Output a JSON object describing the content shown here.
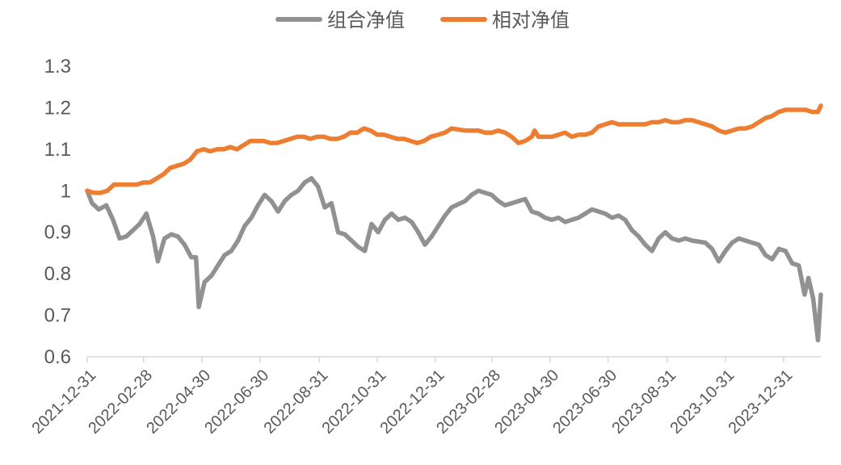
{
  "chart_data": {
    "type": "line",
    "title": "",
    "xlabel": "",
    "ylabel": "",
    "ylim": [
      0.6,
      1.3
    ],
    "yticks": [
      "0.6",
      "0.7",
      "0.8",
      "0.9",
      "1",
      "1.1",
      "1.2",
      "1.3"
    ],
    "xticks": [
      "2021-12-31",
      "2022-02-28",
      "2022-04-30",
      "2022-06-30",
      "2022-08-31",
      "2022-10-31",
      "2022-12-31",
      "2023-02-28",
      "2023-04-30",
      "2023-06-30",
      "2023-08-31",
      "2023-10-31",
      "2023-12-31"
    ],
    "x_end": "2024-02-08",
    "grid": false,
    "legend_position": "top-center",
    "series": [
      {
        "name": "组合净值",
        "color": "#919191",
        "points": [
          [
            "2021-12-31",
            1.0
          ],
          [
            "2022-01-05",
            0.97
          ],
          [
            "2022-01-12",
            0.955
          ],
          [
            "2022-01-20",
            0.965
          ],
          [
            "2022-01-27",
            0.93
          ],
          [
            "2022-02-03",
            0.885
          ],
          [
            "2022-02-10",
            0.89
          ],
          [
            "2022-02-17",
            0.905
          ],
          [
            "2022-02-24",
            0.92
          ],
          [
            "2022-03-03",
            0.945
          ],
          [
            "2022-03-10",
            0.89
          ],
          [
            "2022-03-15",
            0.83
          ],
          [
            "2022-03-22",
            0.885
          ],
          [
            "2022-03-29",
            0.895
          ],
          [
            "2022-04-05",
            0.89
          ],
          [
            "2022-04-12",
            0.87
          ],
          [
            "2022-04-19",
            0.84
          ],
          [
            "2022-04-24",
            0.84
          ],
          [
            "2022-04-27",
            0.72
          ],
          [
            "2022-05-03",
            0.78
          ],
          [
            "2022-05-10",
            0.795
          ],
          [
            "2022-05-17",
            0.82
          ],
          [
            "2022-05-24",
            0.845
          ],
          [
            "2022-05-31",
            0.855
          ],
          [
            "2022-06-07",
            0.88
          ],
          [
            "2022-06-14",
            0.915
          ],
          [
            "2022-06-21",
            0.935
          ],
          [
            "2022-06-28",
            0.965
          ],
          [
            "2022-07-05",
            0.99
          ],
          [
            "2022-07-12",
            0.975
          ],
          [
            "2022-07-19",
            0.95
          ],
          [
            "2022-07-26",
            0.975
          ],
          [
            "2022-08-02",
            0.99
          ],
          [
            "2022-08-09",
            1.0
          ],
          [
            "2022-08-16",
            1.02
          ],
          [
            "2022-08-23",
            1.03
          ],
          [
            "2022-08-30",
            1.01
          ],
          [
            "2022-09-06",
            0.96
          ],
          [
            "2022-09-13",
            0.97
          ],
          [
            "2022-09-20",
            0.9
          ],
          [
            "2022-09-27",
            0.895
          ],
          [
            "2022-10-04",
            0.88
          ],
          [
            "2022-10-11",
            0.865
          ],
          [
            "2022-10-18",
            0.855
          ],
          [
            "2022-10-25",
            0.92
          ],
          [
            "2022-11-01",
            0.9
          ],
          [
            "2022-11-08",
            0.93
          ],
          [
            "2022-11-15",
            0.945
          ],
          [
            "2022-11-22",
            0.93
          ],
          [
            "2022-11-29",
            0.935
          ],
          [
            "2022-12-06",
            0.925
          ],
          [
            "2022-12-13",
            0.9
          ],
          [
            "2022-12-20",
            0.87
          ],
          [
            "2022-12-27",
            0.89
          ],
          [
            "2023-01-03",
            0.915
          ],
          [
            "2023-01-10",
            0.94
          ],
          [
            "2023-01-17",
            0.96
          ],
          [
            "2023-01-31",
            0.975
          ],
          [
            "2023-02-07",
            0.99
          ],
          [
            "2023-02-14",
            1.0
          ],
          [
            "2023-02-21",
            0.995
          ],
          [
            "2023-02-28",
            0.99
          ],
          [
            "2023-03-07",
            0.975
          ],
          [
            "2023-03-14",
            0.965
          ],
          [
            "2023-03-21",
            0.97
          ],
          [
            "2023-03-28",
            0.975
          ],
          [
            "2023-04-04",
            0.98
          ],
          [
            "2023-04-11",
            0.95
          ],
          [
            "2023-04-18",
            0.945
          ],
          [
            "2023-04-25",
            0.935
          ],
          [
            "2023-05-02",
            0.93
          ],
          [
            "2023-05-09",
            0.935
          ],
          [
            "2023-05-16",
            0.925
          ],
          [
            "2023-05-23",
            0.93
          ],
          [
            "2023-05-30",
            0.935
          ],
          [
            "2023-06-06",
            0.945
          ],
          [
            "2023-06-13",
            0.955
          ],
          [
            "2023-06-20",
            0.95
          ],
          [
            "2023-06-27",
            0.945
          ],
          [
            "2023-07-04",
            0.935
          ],
          [
            "2023-07-11",
            0.94
          ],
          [
            "2023-07-18",
            0.93
          ],
          [
            "2023-07-25",
            0.905
          ],
          [
            "2023-08-01",
            0.89
          ],
          [
            "2023-08-08",
            0.87
          ],
          [
            "2023-08-15",
            0.855
          ],
          [
            "2023-08-22",
            0.885
          ],
          [
            "2023-08-29",
            0.9
          ],
          [
            "2023-09-05",
            0.885
          ],
          [
            "2023-09-12",
            0.88
          ],
          [
            "2023-09-19",
            0.885
          ],
          [
            "2023-09-26",
            0.88
          ],
          [
            "2023-10-10",
            0.875
          ],
          [
            "2023-10-17",
            0.86
          ],
          [
            "2023-10-24",
            0.83
          ],
          [
            "2023-10-31",
            0.855
          ],
          [
            "2023-11-07",
            0.875
          ],
          [
            "2023-11-14",
            0.885
          ],
          [
            "2023-11-21",
            0.88
          ],
          [
            "2023-11-28",
            0.875
          ],
          [
            "2023-12-05",
            0.87
          ],
          [
            "2023-12-12",
            0.845
          ],
          [
            "2023-12-19",
            0.835
          ],
          [
            "2023-12-26",
            0.86
          ],
          [
            "2024-01-02",
            0.855
          ],
          [
            "2024-01-09",
            0.825
          ],
          [
            "2024-01-16",
            0.82
          ],
          [
            "2024-01-22",
            0.75
          ],
          [
            "2024-01-26",
            0.79
          ],
          [
            "2024-01-31",
            0.74
          ],
          [
            "2024-02-05",
            0.64
          ],
          [
            "2024-02-08",
            0.75
          ]
        ]
      },
      {
        "name": "相对净值",
        "color": "#ED7D31",
        "points": [
          [
            "2021-12-31",
            1.0
          ],
          [
            "2022-01-07",
            0.995
          ],
          [
            "2022-01-14",
            0.995
          ],
          [
            "2022-01-21",
            1.0
          ],
          [
            "2022-01-28",
            1.015
          ],
          [
            "2022-02-07",
            1.015
          ],
          [
            "2022-02-14",
            1.015
          ],
          [
            "2022-02-21",
            1.015
          ],
          [
            "2022-02-28",
            1.02
          ],
          [
            "2022-03-07",
            1.02
          ],
          [
            "2022-03-14",
            1.03
          ],
          [
            "2022-03-21",
            1.04
          ],
          [
            "2022-03-28",
            1.055
          ],
          [
            "2022-04-04",
            1.06
          ],
          [
            "2022-04-11",
            1.065
          ],
          [
            "2022-04-18",
            1.075
          ],
          [
            "2022-04-25",
            1.095
          ],
          [
            "2022-05-02",
            1.1
          ],
          [
            "2022-05-09",
            1.095
          ],
          [
            "2022-05-16",
            1.1
          ],
          [
            "2022-05-23",
            1.1
          ],
          [
            "2022-05-30",
            1.105
          ],
          [
            "2022-06-06",
            1.1
          ],
          [
            "2022-06-13",
            1.11
          ],
          [
            "2022-06-20",
            1.12
          ],
          [
            "2022-06-27",
            1.12
          ],
          [
            "2022-07-04",
            1.12
          ],
          [
            "2022-07-11",
            1.115
          ],
          [
            "2022-07-18",
            1.115
          ],
          [
            "2022-07-25",
            1.12
          ],
          [
            "2022-08-01",
            1.125
          ],
          [
            "2022-08-08",
            1.13
          ],
          [
            "2022-08-15",
            1.13
          ],
          [
            "2022-08-22",
            1.125
          ],
          [
            "2022-08-29",
            1.13
          ],
          [
            "2022-09-05",
            1.13
          ],
          [
            "2022-09-12",
            1.125
          ],
          [
            "2022-09-19",
            1.125
          ],
          [
            "2022-09-26",
            1.13
          ],
          [
            "2022-10-03",
            1.14
          ],
          [
            "2022-10-10",
            1.14
          ],
          [
            "2022-10-17",
            1.15
          ],
          [
            "2022-10-24",
            1.145
          ],
          [
            "2022-10-31",
            1.135
          ],
          [
            "2022-11-07",
            1.135
          ],
          [
            "2022-11-14",
            1.13
          ],
          [
            "2022-11-21",
            1.125
          ],
          [
            "2022-11-28",
            1.125
          ],
          [
            "2022-12-05",
            1.12
          ],
          [
            "2022-12-12",
            1.115
          ],
          [
            "2022-12-19",
            1.12
          ],
          [
            "2022-12-26",
            1.13
          ],
          [
            "2023-01-03",
            1.135
          ],
          [
            "2023-01-10",
            1.14
          ],
          [
            "2023-01-17",
            1.15
          ],
          [
            "2023-01-31",
            1.145
          ],
          [
            "2023-02-07",
            1.145
          ],
          [
            "2023-02-14",
            1.145
          ],
          [
            "2023-02-21",
            1.14
          ],
          [
            "2023-02-28",
            1.14
          ],
          [
            "2023-03-07",
            1.145
          ],
          [
            "2023-03-14",
            1.14
          ],
          [
            "2023-03-21",
            1.13
          ],
          [
            "2023-03-28",
            1.115
          ],
          [
            "2023-04-04",
            1.12
          ],
          [
            "2023-04-11",
            1.13
          ],
          [
            "2023-04-14",
            1.145
          ],
          [
            "2023-04-18",
            1.13
          ],
          [
            "2023-04-25",
            1.13
          ],
          [
            "2023-05-02",
            1.13
          ],
          [
            "2023-05-09",
            1.135
          ],
          [
            "2023-05-16",
            1.14
          ],
          [
            "2023-05-23",
            1.13
          ],
          [
            "2023-05-30",
            1.135
          ],
          [
            "2023-06-06",
            1.135
          ],
          [
            "2023-06-13",
            1.14
          ],
          [
            "2023-06-20",
            1.155
          ],
          [
            "2023-06-27",
            1.16
          ],
          [
            "2023-07-04",
            1.165
          ],
          [
            "2023-07-11",
            1.16
          ],
          [
            "2023-07-18",
            1.16
          ],
          [
            "2023-07-25",
            1.16
          ],
          [
            "2023-08-01",
            1.16
          ],
          [
            "2023-08-08",
            1.16
          ],
          [
            "2023-08-15",
            1.165
          ],
          [
            "2023-08-22",
            1.165
          ],
          [
            "2023-08-29",
            1.17
          ],
          [
            "2023-09-05",
            1.165
          ],
          [
            "2023-09-12",
            1.165
          ],
          [
            "2023-09-19",
            1.17
          ],
          [
            "2023-09-26",
            1.17
          ],
          [
            "2023-10-10",
            1.16
          ],
          [
            "2023-10-17",
            1.155
          ],
          [
            "2023-10-24",
            1.145
          ],
          [
            "2023-10-31",
            1.14
          ],
          [
            "2023-11-07",
            1.145
          ],
          [
            "2023-11-14",
            1.15
          ],
          [
            "2023-11-21",
            1.15
          ],
          [
            "2023-11-28",
            1.155
          ],
          [
            "2023-12-05",
            1.165
          ],
          [
            "2023-12-12",
            1.175
          ],
          [
            "2023-12-19",
            1.18
          ],
          [
            "2023-12-26",
            1.19
          ],
          [
            "2024-01-02",
            1.195
          ],
          [
            "2024-01-09",
            1.195
          ],
          [
            "2024-01-16",
            1.195
          ],
          [
            "2024-01-23",
            1.195
          ],
          [
            "2024-01-30",
            1.19
          ],
          [
            "2024-02-05",
            1.19
          ],
          [
            "2024-02-08",
            1.205
          ]
        ]
      }
    ]
  }
}
